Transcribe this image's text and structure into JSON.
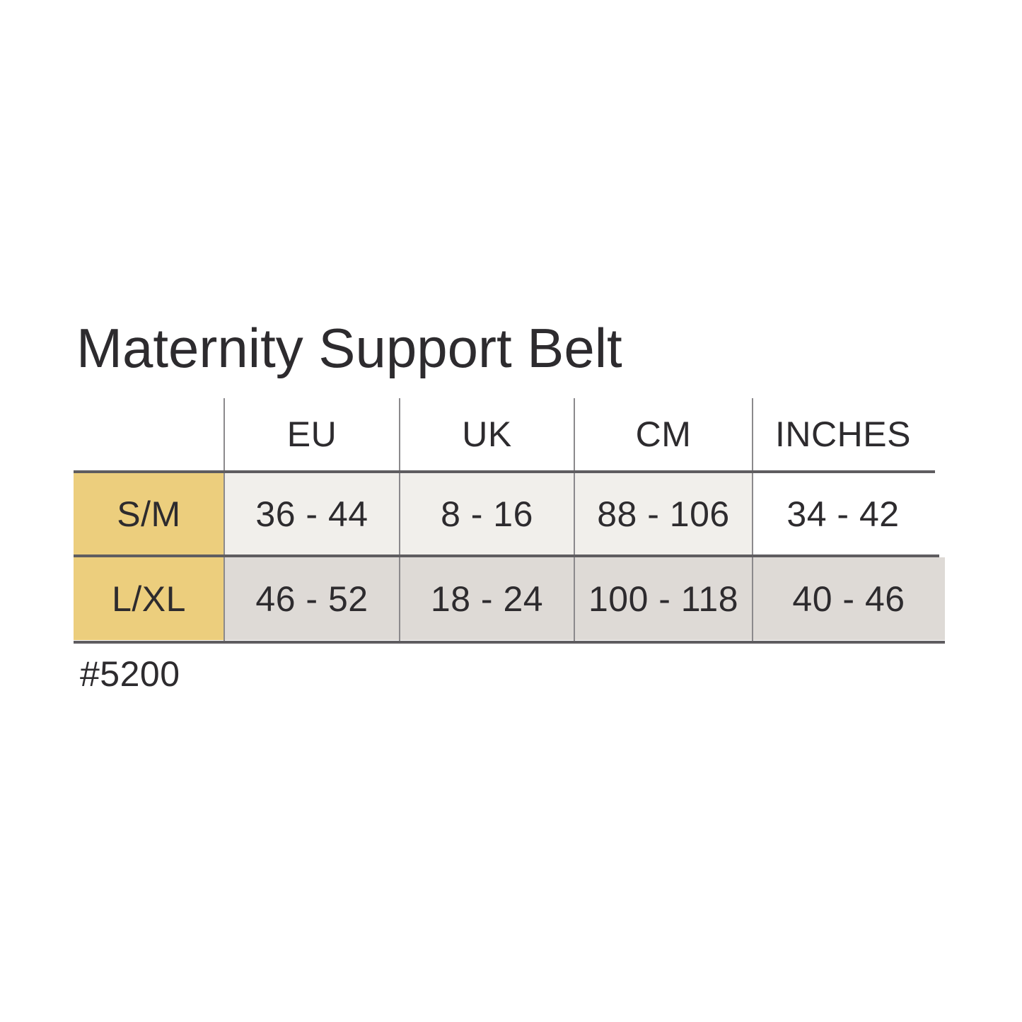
{
  "title": "Maternity Support Belt",
  "product_code": "#5200",
  "size_chart": {
    "columns": [
      "EU",
      "UK",
      "CM",
      "INCHES"
    ],
    "rows": [
      {
        "label": "S/M",
        "values": [
          "36 - 44",
          "8 - 16",
          "88 - 106",
          "34 - 42"
        ]
      },
      {
        "label": "L/XL",
        "values": [
          "46 - 52",
          "18 - 24",
          "100 - 118",
          "40 - 46"
        ]
      }
    ],
    "colors": {
      "size_cell_bg": "#ecce7d",
      "row1_bg": "#f1efeb",
      "row2_bg": "#dedad6",
      "rule_color": "#5f5d60",
      "divider_color": "#8b898c",
      "text_color": "#2d2b2e",
      "page_bg": "#ffffff"
    }
  }
}
